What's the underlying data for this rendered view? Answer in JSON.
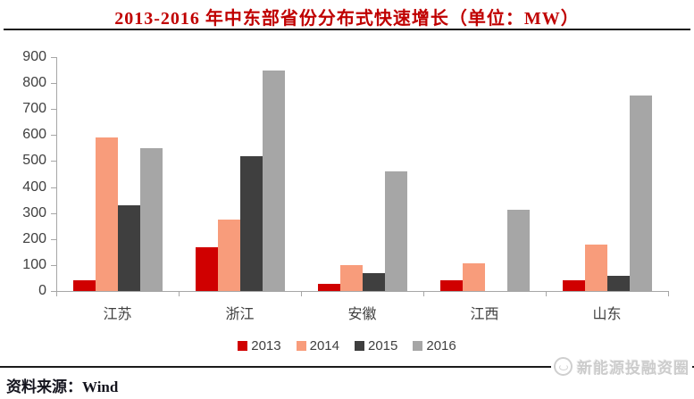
{
  "title": "2013-2016 年中东部省份分布式快速增长（单位：MW）",
  "source_label": "资料来源：Wind",
  "logo": {
    "text": "新能源投融资圈",
    "icon": "circle-badge-icon"
  },
  "colors": {
    "title_red": "#c00000",
    "axis_gray": "#a6a6a6",
    "label_gray": "#3f3f3f",
    "rule_black": "#1a1a1a",
    "logo_gray": "#cccccc"
  },
  "chart_data": {
    "type": "bar",
    "title": "2013-2016 年中东部省份分布式快速增长（单位：MW）",
    "categories": [
      "江苏",
      "浙江",
      "安徽",
      "江西",
      "山东"
    ],
    "series": [
      {
        "name": "2013",
        "color": "#d00000",
        "values": [
          40,
          168,
          27,
          42,
          42
        ]
      },
      {
        "name": "2014",
        "color": "#f89c7b",
        "values": [
          590,
          275,
          100,
          105,
          180
        ]
      },
      {
        "name": "2015",
        "color": "#3f3f3f",
        "values": [
          330,
          520,
          70,
          0,
          60
        ]
      },
      {
        "name": "2016",
        "color": "#a6a6a6",
        "values": [
          550,
          850,
          460,
          312,
          753
        ]
      }
    ],
    "ylim": [
      0,
      900
    ],
    "yticks": [
      0,
      100,
      200,
      300,
      400,
      500,
      600,
      700,
      800,
      900
    ],
    "xlabel": "",
    "ylabel": "",
    "grid": false,
    "legend_position": "bottom"
  }
}
